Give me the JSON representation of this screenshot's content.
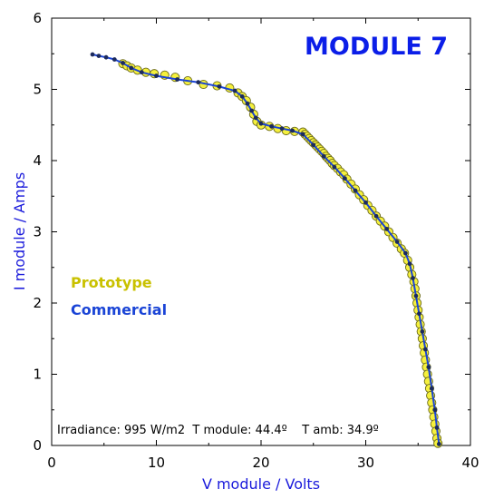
{
  "chart_data": {
    "type": "scatter",
    "title": "MODULE 7",
    "xlabel": "V module / Volts",
    "ylabel": "I module / Amps",
    "xlim": [
      0,
      40
    ],
    "ylim": [
      0,
      6
    ],
    "x_ticks": [
      0,
      10,
      20,
      30,
      40
    ],
    "y_ticks": [
      0,
      1,
      2,
      3,
      4,
      5,
      6
    ],
    "x_tick_labels": [
      "0",
      "10",
      "20",
      "30",
      "40"
    ],
    "y_tick_labels": [
      "0",
      "1",
      "2",
      "3",
      "4",
      "5",
      "6"
    ],
    "grid": false,
    "legend_position": "left",
    "annotation": "Irradiance: 995 W/m2  T module: 44.4º    T amb: 34.9º",
    "series": [
      {
        "name": "Prototype",
        "marker": "circle",
        "color": "#f5f03c",
        "points": [
          [
            6.8,
            5.36
          ],
          [
            7.2,
            5.33
          ],
          [
            7.6,
            5.3
          ],
          [
            8.2,
            5.27
          ],
          [
            9.0,
            5.24
          ],
          [
            9.8,
            5.22
          ],
          [
            10.8,
            5.2
          ],
          [
            11.8,
            5.17
          ],
          [
            13.0,
            5.12
          ],
          [
            14.5,
            5.07
          ],
          [
            15.8,
            5.05
          ],
          [
            17.0,
            5.02
          ],
          [
            17.8,
            4.95
          ],
          [
            18.2,
            4.9
          ],
          [
            18.6,
            4.84
          ],
          [
            19.0,
            4.75
          ],
          [
            19.3,
            4.65
          ],
          [
            19.6,
            4.55
          ],
          [
            20.0,
            4.5
          ],
          [
            20.8,
            4.48
          ],
          [
            21.6,
            4.45
          ],
          [
            22.4,
            4.42
          ],
          [
            23.2,
            4.41
          ],
          [
            24.0,
            4.4
          ],
          [
            24.2,
            4.37
          ],
          [
            24.4,
            4.34
          ],
          [
            24.6,
            4.31
          ],
          [
            24.8,
            4.28
          ],
          [
            25.0,
            4.25
          ],
          [
            25.2,
            4.22
          ],
          [
            25.4,
            4.19
          ],
          [
            25.6,
            4.16
          ],
          [
            25.8,
            4.13
          ],
          [
            26.0,
            4.1
          ],
          [
            26.2,
            4.06
          ],
          [
            26.4,
            4.03
          ],
          [
            26.6,
            4.0
          ],
          [
            26.8,
            3.96
          ],
          [
            27.0,
            3.93
          ],
          [
            27.3,
            3.89
          ],
          [
            27.6,
            3.84
          ],
          [
            27.9,
            3.8
          ],
          [
            28.2,
            3.74
          ],
          [
            28.6,
            3.67
          ],
          [
            29.0,
            3.6
          ],
          [
            29.4,
            3.52
          ],
          [
            29.8,
            3.45
          ],
          [
            30.2,
            3.37
          ],
          [
            30.6,
            3.3
          ],
          [
            31.0,
            3.22
          ],
          [
            31.4,
            3.15
          ],
          [
            31.8,
            3.08
          ],
          [
            32.2,
            3.0
          ],
          [
            32.6,
            2.92
          ],
          [
            33.0,
            2.84
          ],
          [
            33.4,
            2.76
          ],
          [
            33.7,
            2.7
          ],
          [
            34.0,
            2.6
          ],
          [
            34.2,
            2.5
          ],
          [
            34.4,
            2.4
          ],
          [
            34.6,
            2.3
          ],
          [
            34.7,
            2.2
          ],
          [
            34.8,
            2.1
          ],
          [
            34.9,
            2.0
          ],
          [
            35.0,
            1.9
          ],
          [
            35.1,
            1.8
          ],
          [
            35.2,
            1.7
          ],
          [
            35.3,
            1.6
          ],
          [
            35.4,
            1.5
          ],
          [
            35.5,
            1.4
          ],
          [
            35.6,
            1.3
          ],
          [
            35.7,
            1.2
          ],
          [
            35.8,
            1.1
          ],
          [
            35.9,
            1.0
          ],
          [
            36.0,
            0.9
          ],
          [
            36.1,
            0.8
          ],
          [
            36.2,
            0.7
          ],
          [
            36.3,
            0.6
          ],
          [
            36.4,
            0.5
          ],
          [
            36.5,
            0.4
          ],
          [
            36.6,
            0.3
          ],
          [
            36.7,
            0.2
          ],
          [
            36.8,
            0.1
          ],
          [
            36.9,
            0.03
          ]
        ]
      },
      {
        "name": "Commercial",
        "marker": "line-dot",
        "color": "#1a44d6",
        "points": [
          [
            3.9,
            5.49
          ],
          [
            4.5,
            5.47
          ],
          [
            5.2,
            5.45
          ],
          [
            6.0,
            5.42
          ],
          [
            6.8,
            5.37
          ],
          [
            7.6,
            5.3
          ],
          [
            8.6,
            5.24
          ],
          [
            10.0,
            5.19
          ],
          [
            12.0,
            5.14
          ],
          [
            14.0,
            5.1
          ],
          [
            16.0,
            5.04
          ],
          [
            17.5,
            4.98
          ],
          [
            18.2,
            4.9
          ],
          [
            18.7,
            4.8
          ],
          [
            19.1,
            4.7
          ],
          [
            19.5,
            4.6
          ],
          [
            20.0,
            4.52
          ],
          [
            21.0,
            4.48
          ],
          [
            22.0,
            4.45
          ],
          [
            23.0,
            4.42
          ],
          [
            24.0,
            4.37
          ],
          [
            25.0,
            4.22
          ],
          [
            26.0,
            4.06
          ],
          [
            27.0,
            3.91
          ],
          [
            28.0,
            3.75
          ],
          [
            29.0,
            3.58
          ],
          [
            30.0,
            3.41
          ],
          [
            31.0,
            3.22
          ],
          [
            32.0,
            3.04
          ],
          [
            33.0,
            2.86
          ],
          [
            33.8,
            2.7
          ],
          [
            34.2,
            2.55
          ],
          [
            34.5,
            2.35
          ],
          [
            34.8,
            2.1
          ],
          [
            35.1,
            1.85
          ],
          [
            35.4,
            1.6
          ],
          [
            35.7,
            1.35
          ],
          [
            36.0,
            1.1
          ],
          [
            36.3,
            0.8
          ],
          [
            36.6,
            0.5
          ],
          [
            36.8,
            0.25
          ],
          [
            37.0,
            0.02
          ]
        ]
      }
    ]
  }
}
